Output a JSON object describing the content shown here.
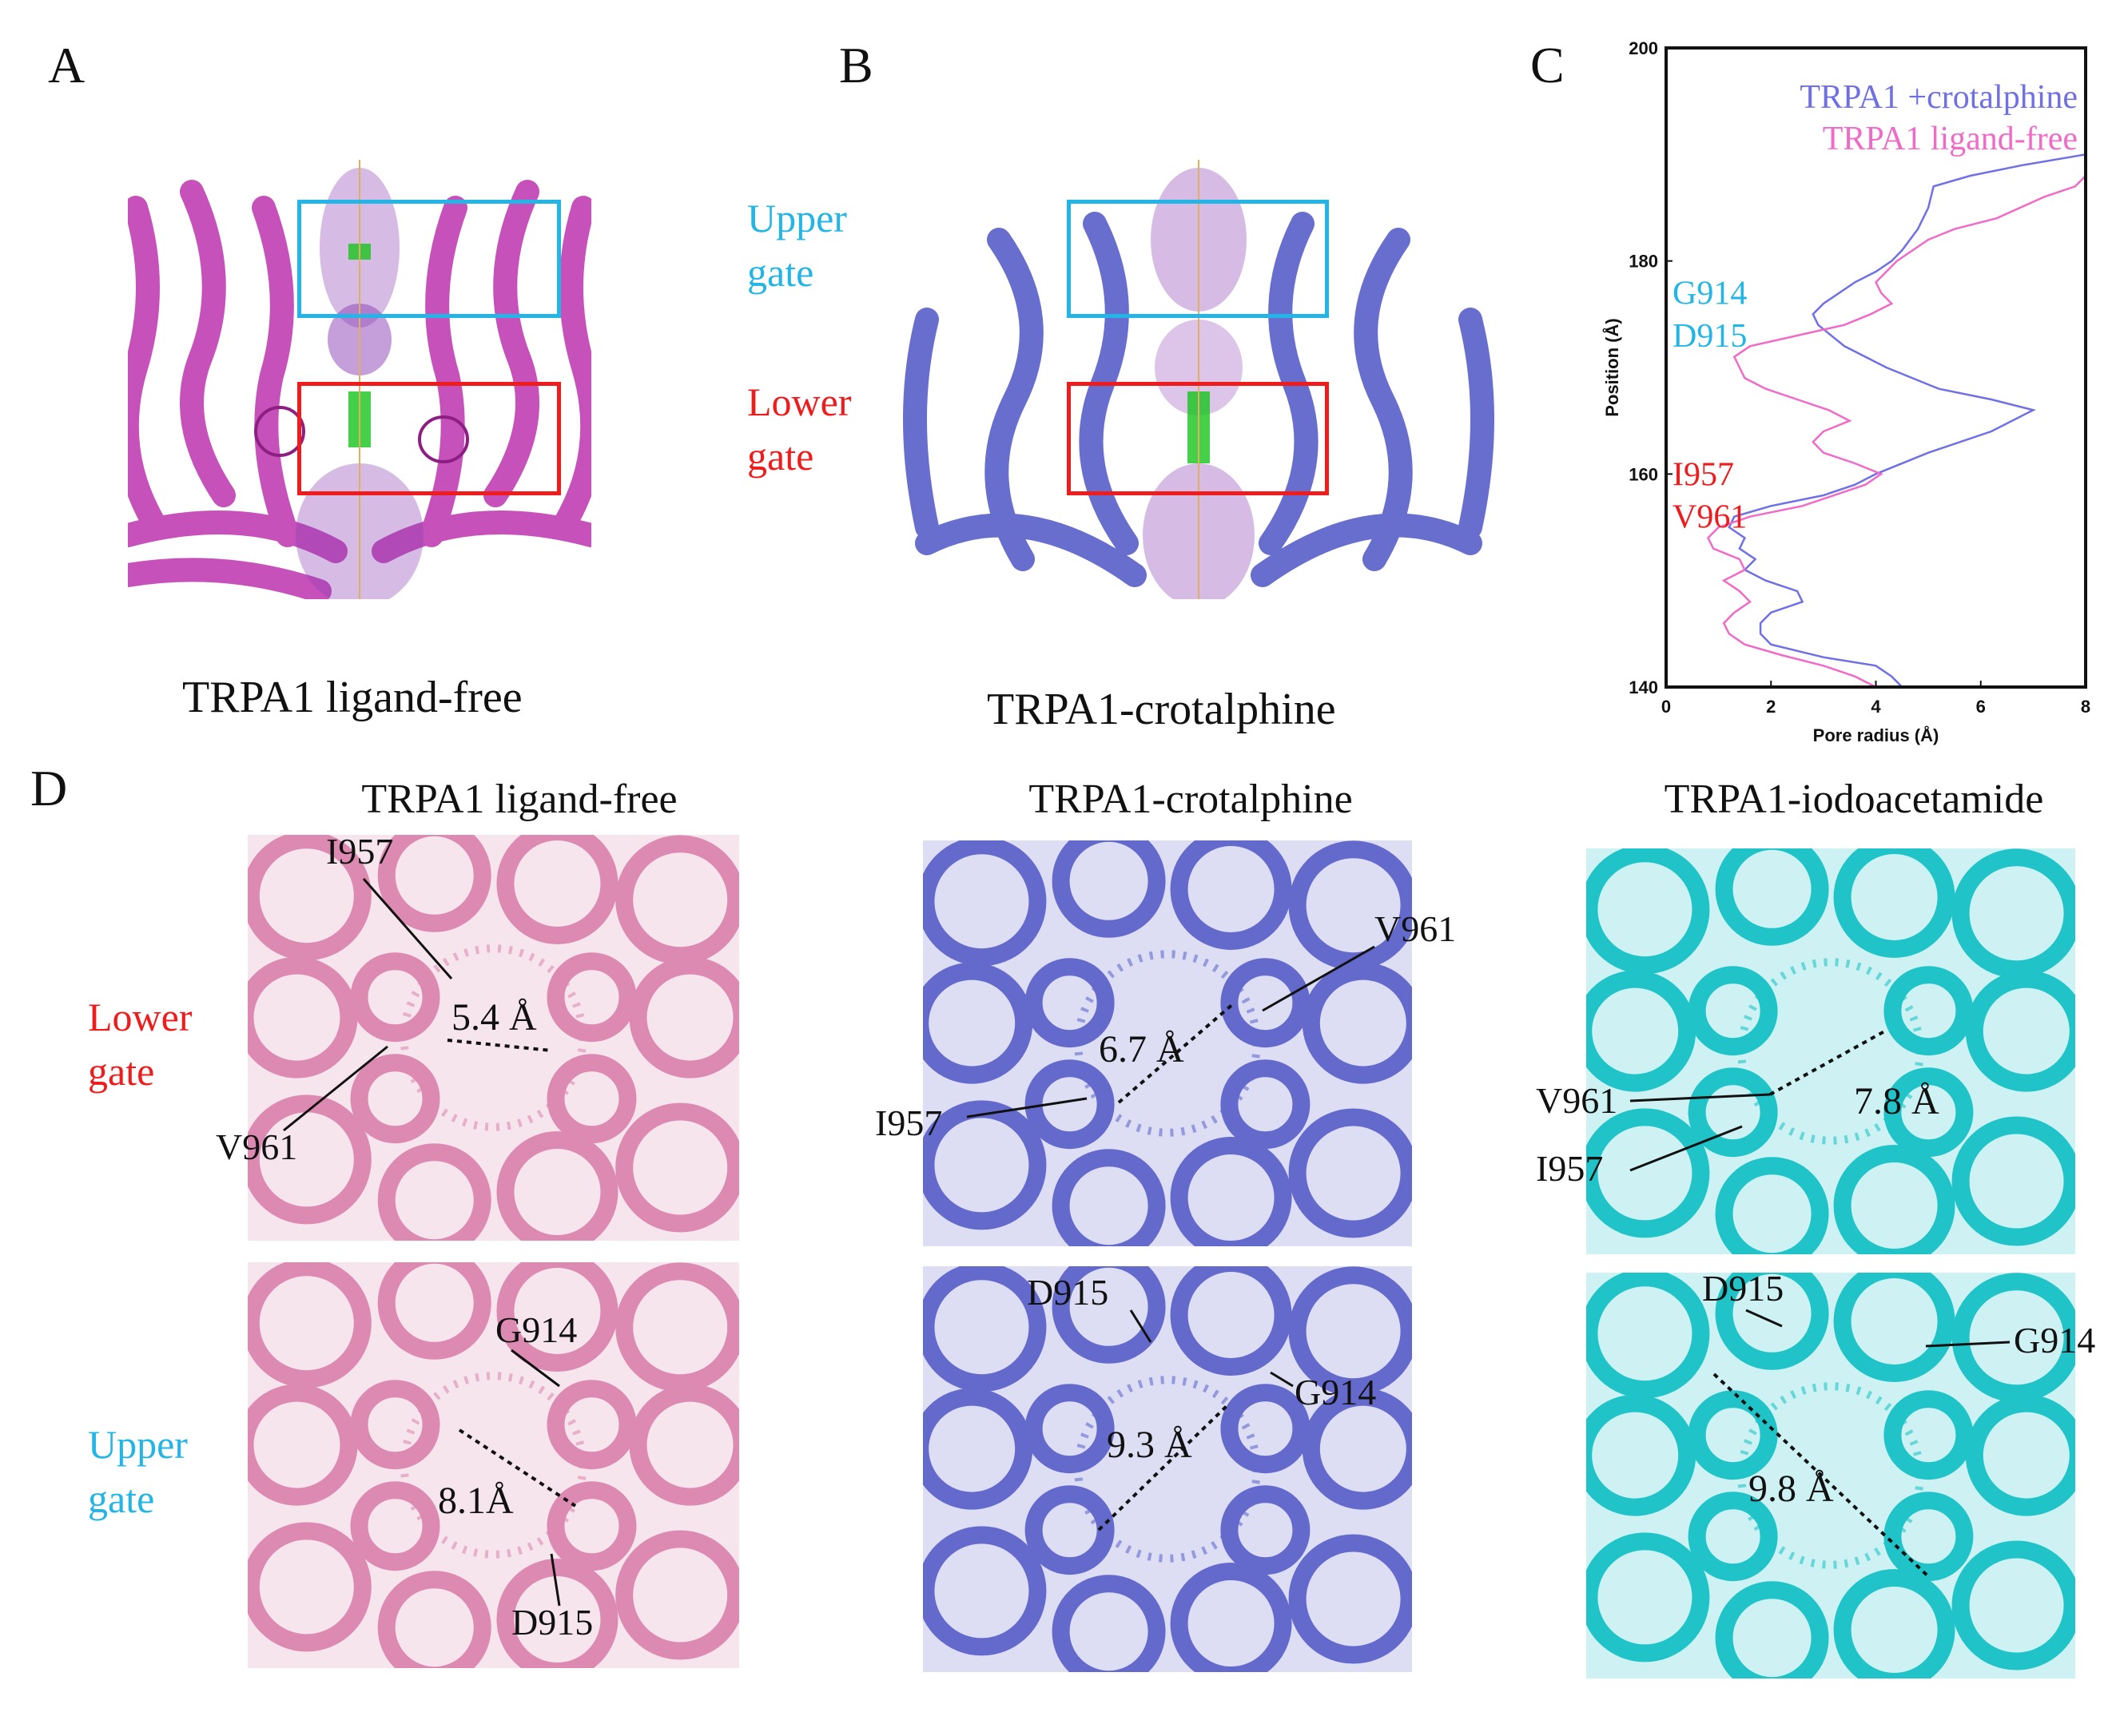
{
  "panels": {
    "A": {
      "letter": "A",
      "caption": "TRPA1 ligand-free",
      "upper_gate_label": [
        "Upper",
        "gate"
      ],
      "lower_gate_label": [
        "Lower",
        "gate"
      ],
      "protein_color": "#c23fb4"
    },
    "B": {
      "letter": "B",
      "caption": "TRPA1-crotalphine",
      "protein_color": "#5b62c9"
    },
    "C": {
      "letter": "C"
    },
    "D": {
      "letter": "D",
      "row_labels": {
        "lower": [
          "Lower",
          "gate"
        ],
        "upper": [
          "Upper",
          "gate"
        ]
      },
      "columns": [
        {
          "title": "TRPA1 ligand-free",
          "color": "#dc8ab1",
          "lower": {
            "distance": "5.4 Å",
            "residues": [
              "I957",
              "V961"
            ]
          },
          "upper": {
            "distance": "8.1Å",
            "residues": [
              "G914",
              "D915"
            ]
          }
        },
        {
          "title": "TRPA1-crotalphine",
          "color": "#6469cc",
          "lower": {
            "distance": "6.7 Å",
            "residues": [
              "V961",
              "I957"
            ]
          },
          "upper": {
            "distance": "9.3 Å",
            "residues": [
              "D915",
              "G914"
            ]
          }
        },
        {
          "title": "TRPA1-iodoacetamide",
          "color": "#20c4c8",
          "lower": {
            "distance": "7.8 Å",
            "residues": [
              "V961",
              "I957"
            ]
          },
          "upper": {
            "distance": "9.8 Å",
            "residues": [
              "D915",
              "G914"
            ]
          }
        }
      ]
    }
  },
  "colors": {
    "upper_gate": "#22b5e6",
    "lower_gate": "#ee1c1c",
    "crotalphine_line": "#6f6fe6",
    "ligand_free_line": "#f06ac8"
  },
  "chart_data": {
    "type": "line",
    "xlabel": "Pore radius (Å)",
    "ylabel": "Position (Å)",
    "xlim": [
      0,
      8
    ],
    "ylim": [
      140,
      200
    ],
    "xticks": [
      0,
      2,
      4,
      6,
      8
    ],
    "yticks": [
      140,
      160,
      180,
      200
    ],
    "legend": "top-right",
    "annotations": [
      {
        "text": "G914",
        "color": "#22b5e6",
        "position": 177
      },
      {
        "text": "D915",
        "color": "#22b5e6",
        "position": 173
      },
      {
        "text": "I957",
        "color": "#ee1c1c",
        "position": 160
      },
      {
        "text": "V961",
        "color": "#ee1c1c",
        "position": 156
      }
    ],
    "series": [
      {
        "name": "TRPA1 +crotalphine",
        "color": "#6f6fe6",
        "points": [
          [
            4.5,
            140
          ],
          [
            4.3,
            141
          ],
          [
            4.0,
            142
          ],
          [
            3.0,
            142.8
          ],
          [
            2.0,
            144
          ],
          [
            1.8,
            145
          ],
          [
            1.8,
            146
          ],
          [
            2.0,
            147
          ],
          [
            2.6,
            148
          ],
          [
            2.5,
            149
          ],
          [
            1.9,
            150
          ],
          [
            1.5,
            151
          ],
          [
            1.7,
            152
          ],
          [
            1.4,
            153
          ],
          [
            1.5,
            154
          ],
          [
            1.2,
            155
          ],
          [
            1.3,
            156
          ],
          [
            2.0,
            157
          ],
          [
            3.0,
            158
          ],
          [
            3.6,
            159
          ],
          [
            4.0,
            160
          ],
          [
            5.0,
            162
          ],
          [
            6.2,
            164
          ],
          [
            7.0,
            166
          ],
          [
            6.2,
            167
          ],
          [
            5.2,
            168
          ],
          [
            4.2,
            170
          ],
          [
            3.4,
            172
          ],
          [
            2.9,
            174
          ],
          [
            2.8,
            175
          ],
          [
            3.0,
            176
          ],
          [
            3.3,
            177
          ],
          [
            3.6,
            178
          ],
          [
            4.0,
            179
          ],
          [
            4.3,
            180
          ],
          [
            4.5,
            181
          ],
          [
            4.8,
            183
          ],
          [
            5.0,
            185
          ],
          [
            5.1,
            187
          ],
          [
            5.8,
            188
          ],
          [
            6.8,
            189
          ],
          [
            8.0,
            190
          ]
        ]
      },
      {
        "name": "TRPA1 ligand-free",
        "color": "#f06ac8",
        "points": [
          [
            4.0,
            140
          ],
          [
            3.6,
            141
          ],
          [
            3.0,
            142
          ],
          [
            2.2,
            143
          ],
          [
            1.5,
            144
          ],
          [
            1.2,
            145
          ],
          [
            1.1,
            146
          ],
          [
            1.3,
            147
          ],
          [
            1.6,
            148
          ],
          [
            1.4,
            149
          ],
          [
            1.1,
            150
          ],
          [
            1.5,
            151
          ],
          [
            1.4,
            152
          ],
          [
            0.9,
            153
          ],
          [
            0.8,
            154
          ],
          [
            1.0,
            155
          ],
          [
            1.6,
            156
          ],
          [
            2.6,
            157
          ],
          [
            3.8,
            159
          ],
          [
            4.1,
            160
          ],
          [
            3.6,
            161
          ],
          [
            3.0,
            162
          ],
          [
            2.8,
            163
          ],
          [
            3.0,
            164
          ],
          [
            3.5,
            165
          ],
          [
            3.1,
            166
          ],
          [
            2.5,
            167
          ],
          [
            1.9,
            168
          ],
          [
            1.5,
            169
          ],
          [
            1.4,
            170
          ],
          [
            1.3,
            171
          ],
          [
            1.6,
            172
          ],
          [
            2.5,
            173
          ],
          [
            3.4,
            174
          ],
          [
            3.9,
            175
          ],
          [
            4.3,
            176
          ],
          [
            4.1,
            177
          ],
          [
            4.0,
            178
          ],
          [
            4.4,
            180
          ],
          [
            5.0,
            182
          ],
          [
            5.5,
            183
          ],
          [
            6.3,
            184
          ],
          [
            7.2,
            186
          ],
          [
            7.8,
            187
          ],
          [
            8.0,
            188
          ]
        ]
      }
    ]
  }
}
